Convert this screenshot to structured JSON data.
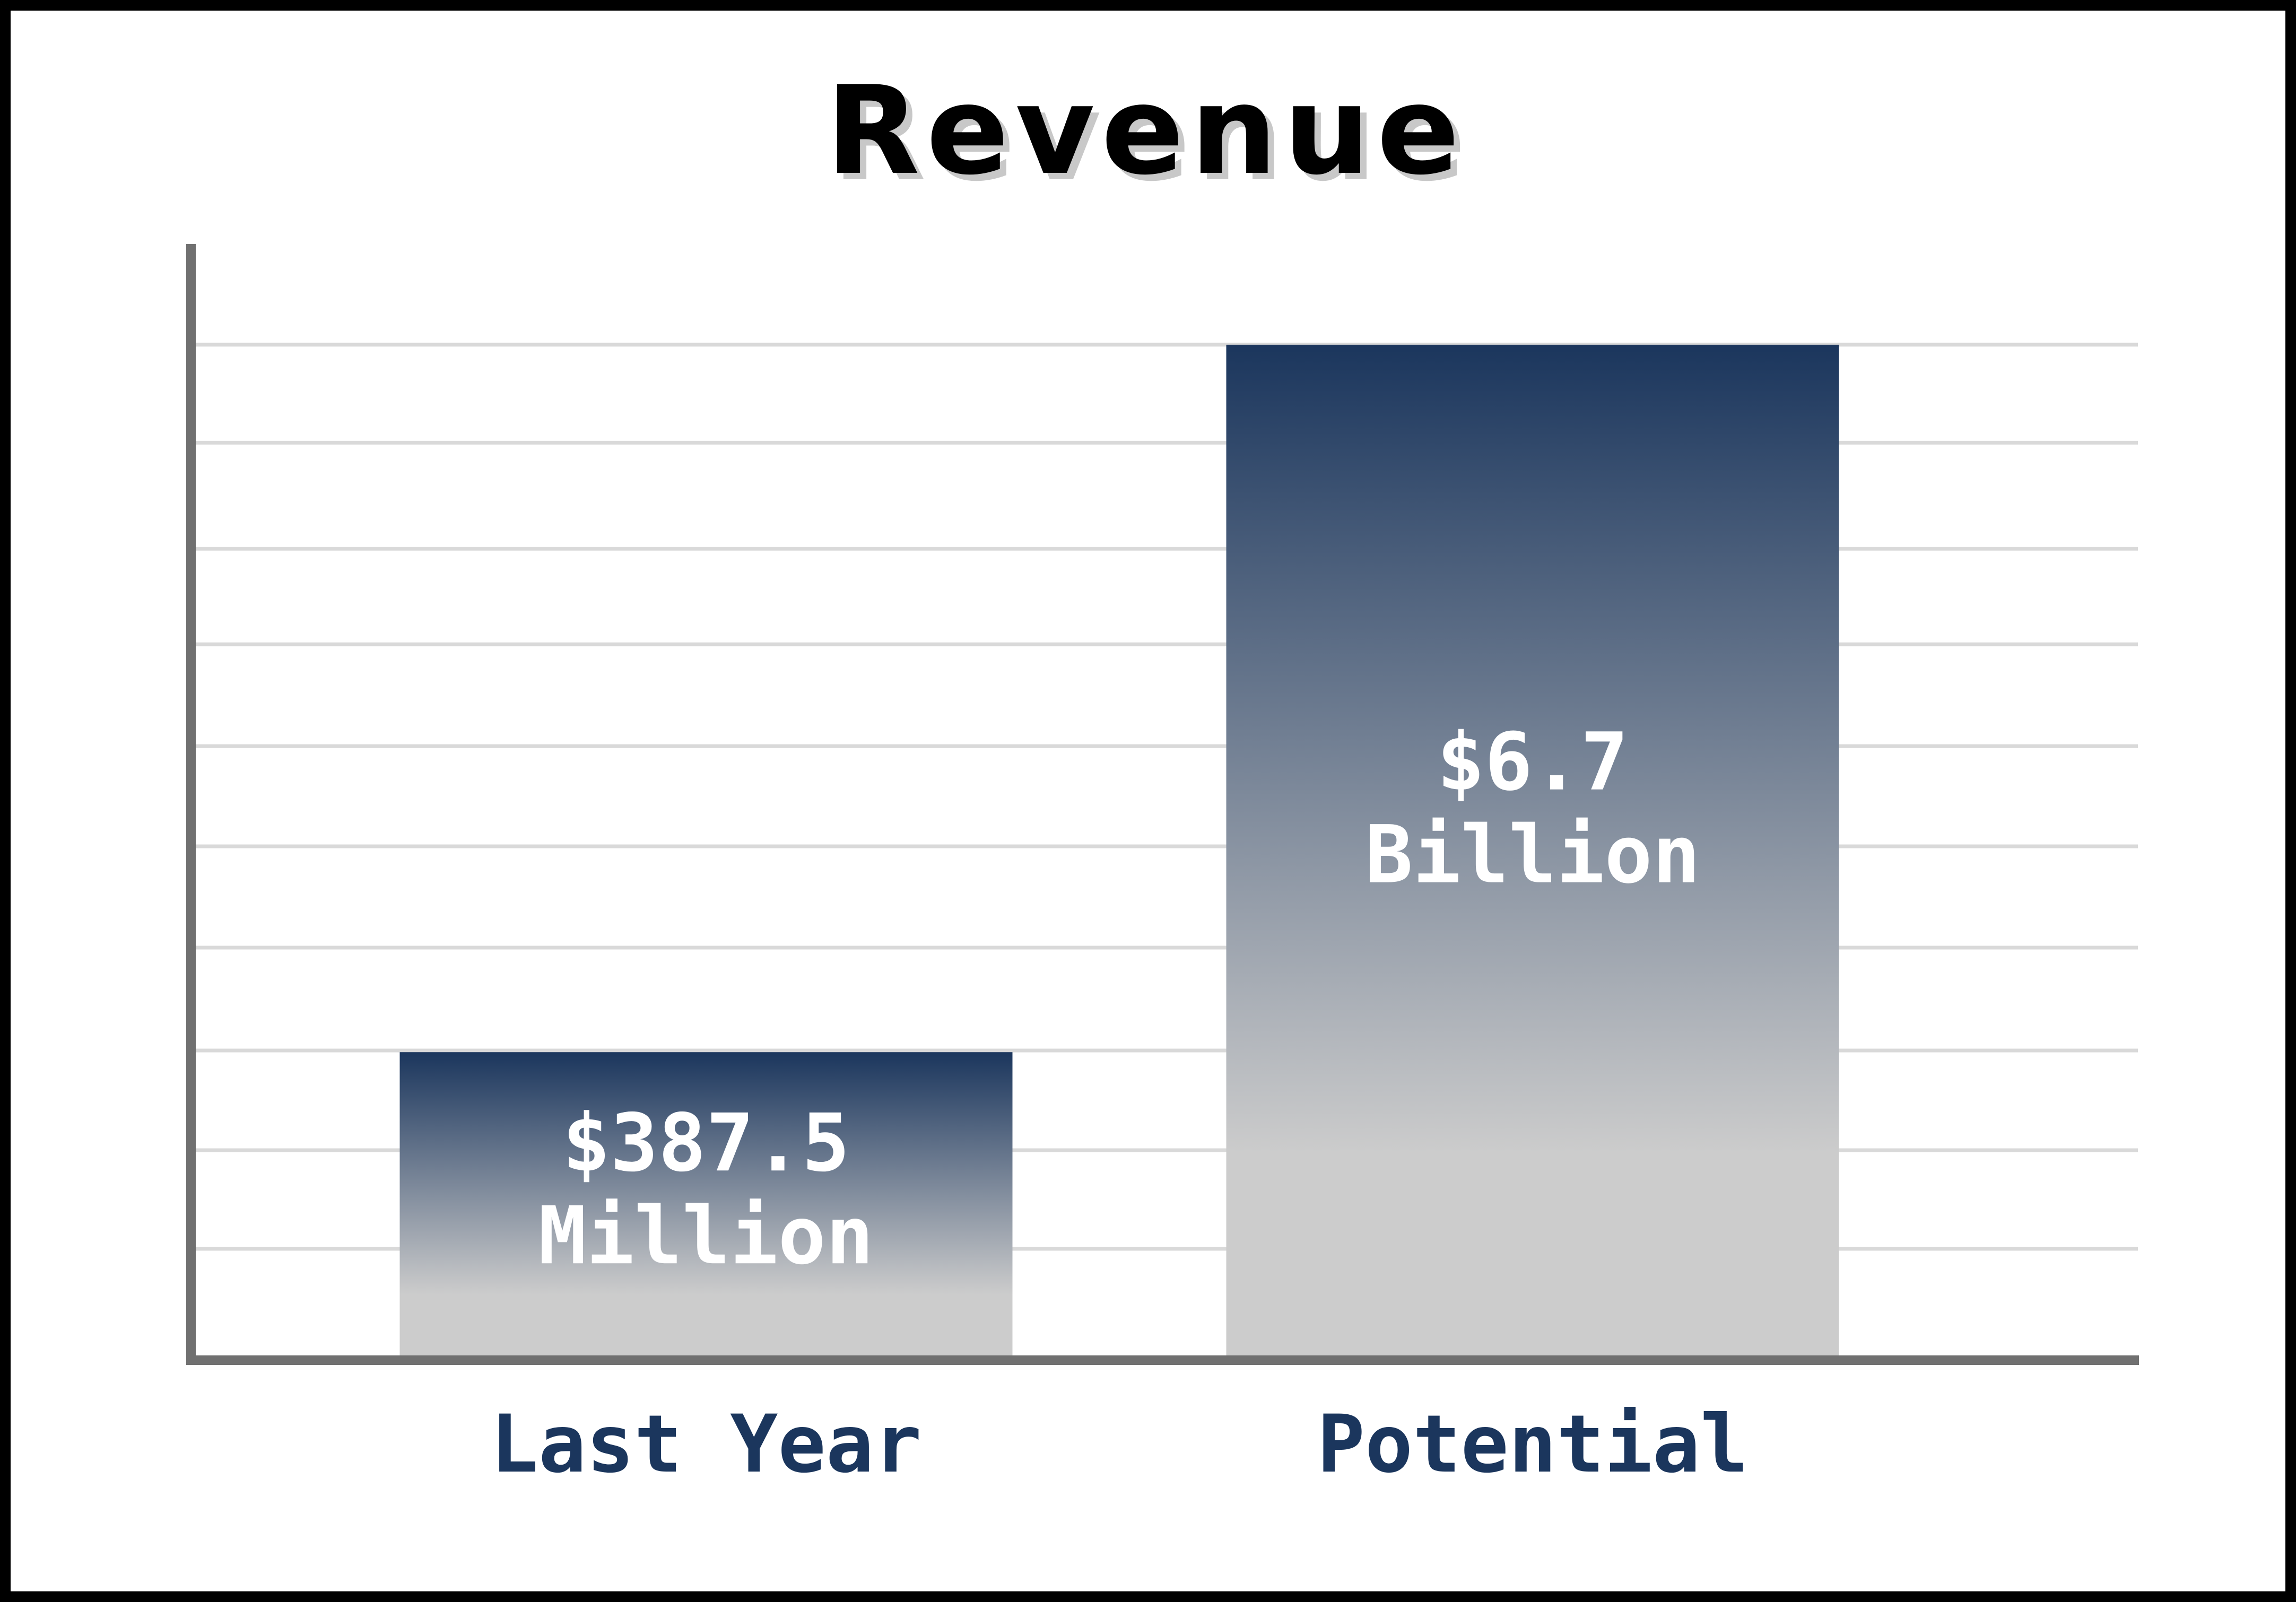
{
  "chart_data": {
    "type": "bar",
    "title": "Revenue",
    "categories": [
      "Last Year",
      "Potential"
    ],
    "values": [
      387.5,
      6700
    ],
    "units": "USD millions",
    "data_labels": [
      [
        "$387.5",
        "Million"
      ],
      [
        "$6.7",
        "Billion"
      ]
    ],
    "xlabel": "",
    "ylabel": "",
    "ylim": [
      0,
      6700
    ],
    "grid": true,
    "legend": "none"
  },
  "colors": {
    "bar_top": "#1b365d",
    "bar_bottom": "#cccccc",
    "axis": "#707070",
    "grid": "#d9d9d9",
    "title": "#000000",
    "title_shadow": "#c8c8c8",
    "category_text": "#1b365d",
    "frame": "#000000"
  }
}
